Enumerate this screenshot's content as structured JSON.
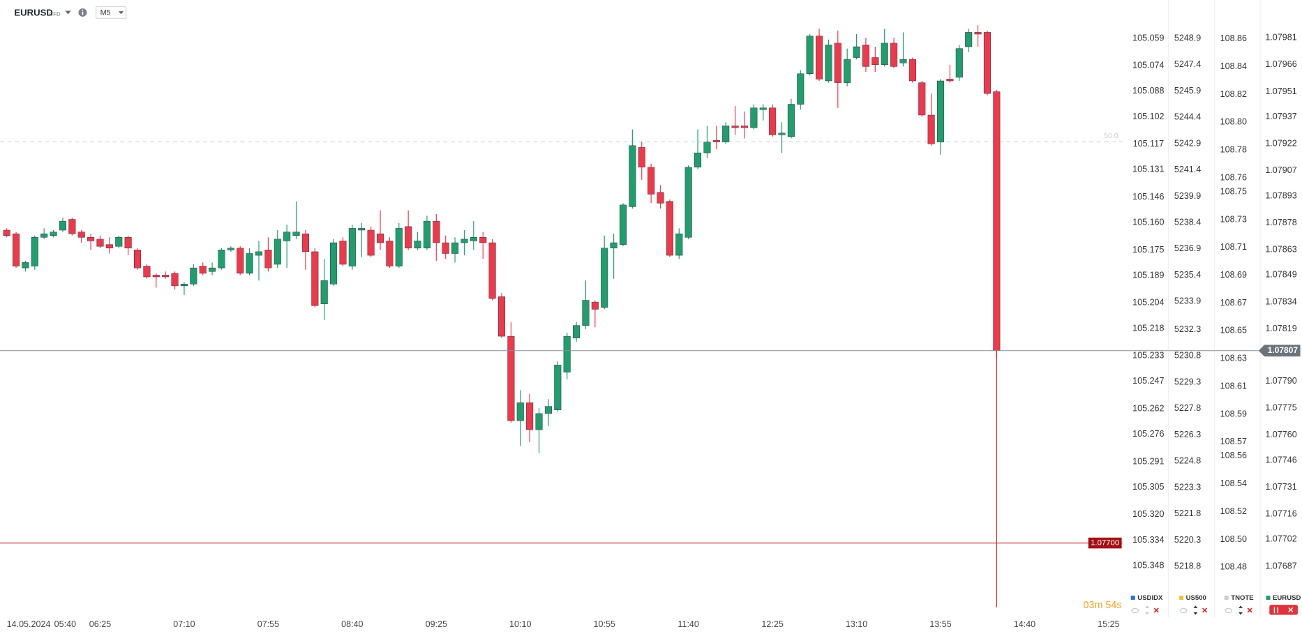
{
  "header": {
    "symbol": "EURUSD",
    "badge": "CFD",
    "timeframe": "M5"
  },
  "countdown": "03m 54s",
  "chart_data": {
    "type": "candlestick",
    "name": "EURUSD",
    "color": "#1f9e6e",
    "up_color": "#1f9e6e",
    "down_color": "#f0384b",
    "date_label": "14.05.2024",
    "level_label": "50.0",
    "categories": [
      null,
      "05:40",
      null,
      null,
      null,
      null,
      null,
      null,
      null,
      null,
      "06:25",
      null,
      null,
      null,
      null,
      null,
      null,
      null,
      null,
      "07:10",
      null,
      null,
      null,
      null,
      null,
      null,
      null,
      null,
      "07:55",
      null,
      null,
      null,
      null,
      null,
      null,
      null,
      null,
      "08:40",
      null,
      null,
      null,
      null,
      null,
      null,
      null,
      null,
      "09:25",
      null,
      null,
      null,
      null,
      null,
      null,
      null,
      null,
      "10:10",
      null,
      null,
      null,
      null,
      null,
      null,
      null,
      null,
      "10:55",
      null,
      null,
      null,
      null,
      null,
      null,
      null,
      null,
      "11:40",
      null,
      null,
      null,
      null,
      null,
      null,
      null,
      null,
      "12:25",
      null,
      null,
      null,
      null,
      null,
      null,
      null,
      null,
      "13:10",
      null,
      null,
      null,
      null,
      null,
      null,
      null,
      null,
      "13:55",
      null,
      null,
      null,
      null,
      null,
      null,
      null,
      null,
      "14:40",
      null,
      null,
      null,
      null,
      null,
      null,
      null,
      null,
      "15:25"
    ],
    "open": [
      1.07874,
      1.07872,
      1.07853,
      1.07854,
      1.0787,
      1.07871,
      1.07874,
      1.0788,
      1.07873,
      1.0787,
      1.07869,
      1.07866,
      1.07865,
      1.0787,
      1.07863,
      1.07854,
      1.07849,
      1.07849,
      1.0785,
      1.07843,
      1.07844,
      1.07854,
      1.07851,
      1.07853,
      1.07863,
      1.07864,
      1.0785,
      1.0786,
      1.07863,
      1.07855,
      1.07868,
      1.07871,
      1.07872,
      1.07862,
      1.07833,
      1.07844,
      1.07868,
      1.07854,
      1.07874,
      1.07874,
      1.07872,
      1.07868,
      1.07854,
      1.07876,
      1.07864,
      1.07864,
      1.07879,
      1.07867,
      1.07861,
      1.07867,
      1.07868,
      1.0787,
      1.07867,
      1.07837,
      1.07815,
      1.07768,
      1.07778,
      1.07763,
      1.07772,
      1.07774,
      1.07795,
      1.07814,
      1.07821,
      1.07834,
      1.07831,
      1.07864,
      1.07866,
      1.07887,
      1.0792,
      1.07909,
      1.07895,
      1.0789,
      1.0786,
      1.0787,
      1.07909,
      1.07917,
      1.07924,
      1.07923,
      1.07932,
      1.07932,
      1.07931,
      1.07941,
      1.07942,
      1.07927,
      1.07926,
      1.07944,
      1.07961,
      1.07982,
      1.07957,
      1.07978,
      1.07956,
      1.0797,
      1.07977,
      1.0797,
      1.07966,
      1.07978,
      1.07967,
      1.07969,
      1.07956,
      1.07938,
      1.07923,
      1.07958,
      1.07959,
      1.07976,
      1.07984,
      1.07984,
      1.07951,
      null,
      null,
      null,
      null,
      null,
      null,
      null,
      null,
      null,
      null,
      null,
      null
    ],
    "high": [
      1.07875,
      1.07873,
      1.07857,
      1.07871,
      1.07875,
      1.07874,
      1.07881,
      1.07881,
      1.07874,
      1.07872,
      1.07871,
      1.0787,
      1.07871,
      1.07871,
      1.07864,
      1.07855,
      1.0785,
      1.07851,
      1.07851,
      1.07845,
      1.07855,
      1.07856,
      1.07856,
      1.07864,
      1.07865,
      1.07865,
      1.07864,
      1.07868,
      1.0787,
      1.07874,
      1.07877,
      1.0789,
      1.07874,
      1.07864,
      1.07858,
      1.07869,
      1.0787,
      1.07877,
      1.07878,
      1.07876,
      1.07885,
      1.0787,
      1.07878,
      1.07885,
      1.07873,
      1.07882,
      1.07883,
      1.07871,
      1.0787,
      1.07874,
      1.07879,
      1.07873,
      1.07869,
      1.07839,
      1.07823,
      1.07785,
      1.07783,
      1.07775,
      1.0778,
      1.07801,
      1.07817,
      1.07823,
      1.07846,
      1.07835,
      1.07871,
      1.07872,
      1.07889,
      1.0793,
      1.07923,
      1.07911,
      1.07899,
      1.07891,
      1.07875,
      1.0791,
      1.0793,
      1.07932,
      1.07932,
      1.07934,
      1.07943,
      1.0794,
      1.07944,
      1.07944,
      1.07944,
      1.07934,
      1.07947,
      1.07963,
      1.07983,
      1.07986,
      1.0798,
      1.07985,
      1.07975,
      1.07983,
      1.07981,
      1.07976,
      1.07986,
      1.07981,
      1.07984,
      1.0797,
      1.07957,
      1.0795,
      1.07958,
      1.07966,
      1.07977,
      1.07986,
      1.07988,
      1.07985,
      1.07952,
      null,
      null,
      null,
      null,
      null,
      null,
      null,
      null,
      null,
      null,
      null,
      null
    ],
    "low": [
      1.0787,
      1.07853,
      1.07851,
      1.07852,
      1.07869,
      1.0787,
      1.07873,
      1.07871,
      1.07867,
      1.07863,
      1.07864,
      1.07861,
      1.07864,
      1.0786,
      1.07852,
      1.07847,
      1.07842,
      1.07847,
      1.07841,
      1.07838,
      1.07843,
      1.07849,
      1.07849,
      1.07852,
      1.07862,
      1.07849,
      1.07849,
      1.07846,
      1.07851,
      1.07853,
      1.07853,
      1.07869,
      1.07852,
      1.07831,
      1.07824,
      1.07843,
      1.07854,
      1.07852,
      1.07859,
      1.07859,
      1.07863,
      1.07853,
      1.07853,
      1.07863,
      1.07863,
      1.07863,
      1.07857,
      1.07858,
      1.07856,
      1.0786,
      1.07863,
      1.07858,
      1.07835,
      1.07814,
      1.07767,
      1.07754,
      1.07756,
      1.0775,
      1.07765,
      1.07773,
      1.07791,
      1.07812,
      1.07819,
      1.0782,
      1.0783,
      1.07847,
      1.07865,
      1.07886,
      1.07902,
      1.07889,
      1.07886,
      1.07859,
      1.07858,
      1.07869,
      1.07908,
      1.07914,
      1.07919,
      1.07922,
      1.07927,
      1.07925,
      1.0793,
      1.07935,
      1.07926,
      1.07917,
      1.07925,
      1.07941,
      1.0796,
      1.07957,
      1.07956,
      1.07942,
      1.07954,
      1.07969,
      1.07962,
      1.07962,
      1.07965,
      1.07964,
      1.07965,
      1.07956,
      1.07937,
      1.07921,
      1.07916,
      1.07956,
      1.07957,
      1.07973,
      1.07976,
      1.07949,
      1.07803,
      null,
      null,
      null,
      null,
      null,
      null,
      null,
      null,
      null,
      null,
      null,
      null
    ],
    "close": [
      1.07871,
      1.07854,
      1.07856,
      1.0787,
      1.07872,
      1.07873,
      1.07879,
      1.07872,
      1.0787,
      1.07868,
      1.07865,
      1.07864,
      1.0787,
      1.07864,
      1.07853,
      1.07848,
      1.07848,
      1.07848,
      1.07843,
      1.07844,
      1.07853,
      1.0785,
      1.07853,
      1.07863,
      1.07864,
      1.0785,
      1.07861,
      1.07862,
      1.07853,
      1.07869,
      1.07873,
      1.07873,
      1.07862,
      1.07832,
      1.07846,
      1.07867,
      1.07855,
      1.07875,
      1.07875,
      1.0786,
      1.07867,
      1.07854,
      1.07875,
      1.07864,
      1.07868,
      1.07879,
      1.07867,
      1.07861,
      1.07867,
      1.07869,
      1.0787,
      1.07867,
      1.07836,
      1.07815,
      1.07768,
      1.07778,
      1.07763,
      1.07772,
      1.07776,
      1.07799,
      1.07815,
      1.07821,
      1.07835,
      1.0783,
      1.07864,
      1.07867,
      1.07888,
      1.07921,
      1.07909,
      1.07894,
      1.07889,
      1.0786,
      1.07872,
      1.07909,
      1.07917,
      1.07923,
      1.07923,
      1.07932,
      1.07931,
      1.07931,
      1.07942,
      1.07942,
      1.07927,
      1.07928,
      1.07944,
      1.07961,
      1.07982,
      1.07958,
      1.07977,
      1.07956,
      1.07969,
      1.07976,
      1.07965,
      1.07966,
      1.07978,
      1.07965,
      1.07969,
      1.07957,
      1.07938,
      1.07922,
      1.07957,
      1.07957,
      1.07975,
      1.07984,
      1.07983,
      1.0795,
      1.07807,
      null,
      null,
      null,
      null,
      null,
      null,
      null,
      null,
      null,
      null,
      null,
      null
    ],
    "ylim": [
      1.08002,
      1.07661
    ],
    "yticks": [
      1.07981,
      1.07966,
      1.07951,
      1.07937,
      1.07922,
      1.07907,
      1.07893,
      1.07878,
      1.07863,
      1.07849,
      1.07834,
      1.07819,
      {
        "value": 1.0779,
        "label": "1.07790"
      },
      1.07775,
      {
        "value": 1.0776,
        "label": "1.07760"
      },
      1.07746,
      1.07731,
      1.07716,
      1.07702,
      1.07687
    ],
    "current_price": {
      "value": 1.07807,
      "label": "1.07807"
    },
    "alert_line": {
      "value": 1.077,
      "label": "1.07700"
    },
    "axes": [
      {
        "name": "USDIDX",
        "color": "#2f6fe4",
        "ylim": [
          105.038,
          105.374
        ],
        "yticks": [
          105.059,
          105.074,
          105.088,
          105.102,
          105.117,
          105.131,
          105.146,
          {
            "value": 105.16,
            "label": "105.160"
          },
          105.175,
          105.189,
          105.204,
          105.218,
          105.233,
          105.247,
          105.262,
          105.276,
          105.291,
          105.305,
          {
            "value": 105.32,
            "label": "105.320"
          },
          105.334,
          105.348
        ]
      },
      {
        "name": "US500",
        "color": "#f2c230",
        "ylim": [
          5251.09,
          5216.14
        ],
        "yticks": [
          5248.9,
          5247.4,
          5245.9,
          5244.4,
          5242.9,
          5241.4,
          5239.9,
          5238.4,
          5236.9,
          5235.4,
          5233.9,
          5232.3,
          5230.8,
          5229.3,
          5227.8,
          5226.3,
          5224.8,
          5223.3,
          5221.8,
          5220.3,
          5218.8
        ]
      },
      {
        "name": "TNOTE",
        "color": "#c8ccd2",
        "ylim": [
          108.888,
          108.447
        ],
        "yticks": [
          108.86,
          108.84,
          108.82,
          {
            "value": 108.8,
            "label": "108.80"
          },
          108.78,
          108.76,
          108.75,
          108.73,
          108.71,
          108.69,
          108.67,
          108.65,
          108.63,
          108.61,
          108.59,
          108.57,
          108.56,
          108.54,
          108.52,
          {
            "value": 108.5,
            "label": "108.50"
          },
          108.48
        ]
      }
    ]
  }
}
